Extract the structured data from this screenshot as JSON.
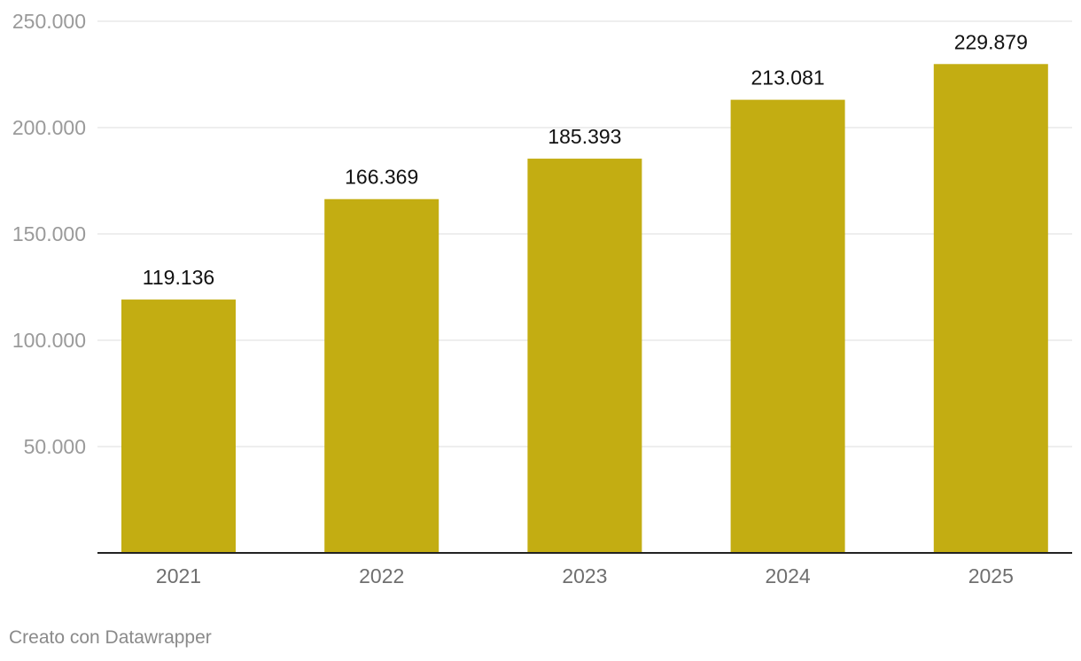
{
  "colors": {
    "bar": "#c3ad12",
    "grid": "#e3e3e3",
    "axis": "#222222",
    "tick_label": "#9a9a9a",
    "category_label": "#6f6f6f",
    "value_label": "#111111",
    "credit": "#8a8a8a"
  },
  "chart_data": {
    "type": "bar",
    "categories": [
      "2021",
      "2022",
      "2023",
      "2024",
      "2025"
    ],
    "values": [
      119136,
      166369,
      185393,
      213081,
      229879
    ],
    "value_labels": [
      "119.136",
      "166.369",
      "185.393",
      "213.081",
      "229.879"
    ],
    "ylim": [
      0,
      250000
    ],
    "yticks": [
      50000,
      100000,
      150000,
      200000,
      250000
    ],
    "ytick_labels": [
      "50.000",
      "100.000",
      "150.000",
      "200.000",
      "250.000"
    ],
    "grid": true,
    "legend": "none",
    "title": "",
    "xlabel": "",
    "ylabel": ""
  },
  "footer": {
    "credit": "Creato con Datawrapper"
  }
}
